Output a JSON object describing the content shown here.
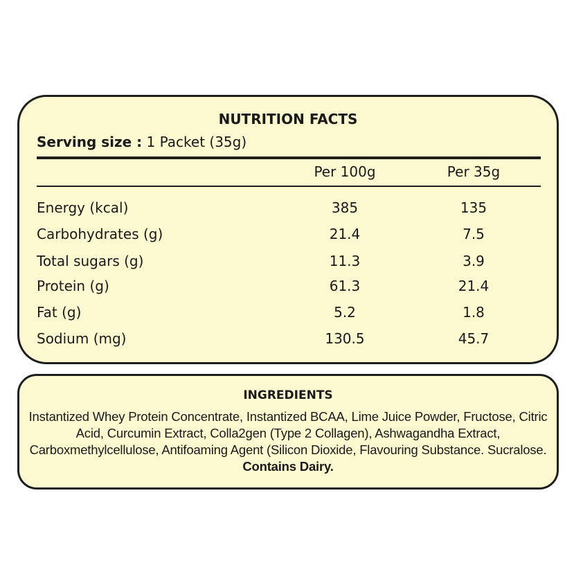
{
  "nutrition": {
    "title": "NUTRITION FACTS",
    "serving_label": "Serving size :",
    "serving_value": "1 Packet (35g)",
    "columns": [
      "Per 100g",
      "Per 35g"
    ],
    "rows": [
      {
        "label": "Energy (kcal)",
        "per100": "385",
        "perServing": "135"
      },
      {
        "label": "Carbohydrates (g)",
        "per100": "21.4",
        "perServing": "7.5"
      },
      {
        "label": "Total sugars (g)",
        "per100": "11.3",
        "perServing": "3.9"
      },
      {
        "label": "Protein (g)",
        "per100": "61.3",
        "perServing": "21.4"
      },
      {
        "label": "Fat (g)",
        "per100": "5.2",
        "perServing": "1.8"
      },
      {
        "label": "Sodium (mg)",
        "per100": "130.5",
        "perServing": "45.7"
      }
    ]
  },
  "ingredients": {
    "title": "INGREDIENTS",
    "text": "Instantized Whey Protein Concentrate, Instantized BCAA, Lime  Juice Powder, Fructose, Citric Acid, Curcumin Extract, Colla2gen (Type 2 Collagen), Ashwagandha Extract, Carboxmethylcellulose, Antifoaming Agent (Silicon Dioxide, Flavouring Substance. Sucralose.",
    "allergen": "Contains Dairy."
  }
}
